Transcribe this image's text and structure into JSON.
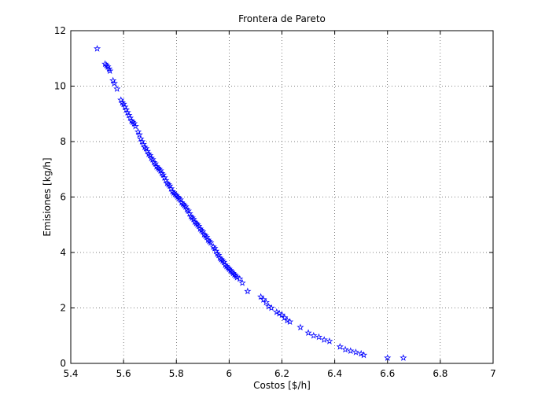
{
  "chart_data": {
    "type": "scatter",
    "title": "Frontera de Pareto",
    "xlabel": "Costos [$/h]",
    "ylabel": "Emisiones [kg/h]",
    "xlim": [
      5.4,
      7
    ],
    "ylim": [
      0,
      12
    ],
    "xticks": [
      "5.4",
      "5.6",
      "5.8",
      "6",
      "6.2",
      "6.4",
      "6.6",
      "6.8",
      "7"
    ],
    "yticks": [
      "0",
      "2",
      "4",
      "6",
      "8",
      "10",
      "12"
    ],
    "grid": true,
    "marker": "pentagram",
    "color": "#0000ff",
    "points": [
      [
        5.5,
        11.35
      ],
      [
        5.53,
        10.8
      ],
      [
        5.535,
        10.75
      ],
      [
        5.54,
        10.7
      ],
      [
        5.545,
        10.62
      ],
      [
        5.548,
        10.55
      ],
      [
        5.56,
        10.2
      ],
      [
        5.565,
        10.1
      ],
      [
        5.575,
        9.9
      ],
      [
        5.59,
        9.5
      ],
      [
        5.595,
        9.4
      ],
      [
        5.6,
        9.35
      ],
      [
        5.605,
        9.25
      ],
      [
        5.61,
        9.15
      ],
      [
        5.615,
        9.05
      ],
      [
        5.62,
        8.95
      ],
      [
        5.625,
        8.85
      ],
      [
        5.63,
        8.75
      ],
      [
        5.635,
        8.7
      ],
      [
        5.64,
        8.65
      ],
      [
        5.645,
        8.55
      ],
      [
        5.655,
        8.35
      ],
      [
        5.66,
        8.25
      ],
      [
        5.665,
        8.1
      ],
      [
        5.67,
        8.0
      ],
      [
        5.675,
        7.9
      ],
      [
        5.68,
        7.8
      ],
      [
        5.685,
        7.75
      ],
      [
        5.69,
        7.65
      ],
      [
        5.695,
        7.55
      ],
      [
        5.7,
        7.5
      ],
      [
        5.705,
        7.4
      ],
      [
        5.71,
        7.35
      ],
      [
        5.715,
        7.25
      ],
      [
        5.72,
        7.2
      ],
      [
        5.725,
        7.1
      ],
      [
        5.73,
        7.05
      ],
      [
        5.735,
        7.0
      ],
      [
        5.74,
        6.95
      ],
      [
        5.745,
        6.85
      ],
      [
        5.75,
        6.8
      ],
      [
        5.755,
        6.7
      ],
      [
        5.76,
        6.6
      ],
      [
        5.765,
        6.5
      ],
      [
        5.77,
        6.45
      ],
      [
        5.775,
        6.4
      ],
      [
        5.78,
        6.3
      ],
      [
        5.785,
        6.2
      ],
      [
        5.79,
        6.15
      ],
      [
        5.795,
        6.1
      ],
      [
        5.8,
        6.05
      ],
      [
        5.805,
        6.0
      ],
      [
        5.81,
        5.95
      ],
      [
        5.815,
        5.9
      ],
      [
        5.82,
        5.8
      ],
      [
        5.825,
        5.75
      ],
      [
        5.83,
        5.7
      ],
      [
        5.835,
        5.65
      ],
      [
        5.84,
        5.55
      ],
      [
        5.845,
        5.5
      ],
      [
        5.85,
        5.4
      ],
      [
        5.855,
        5.3
      ],
      [
        5.86,
        5.25
      ],
      [
        5.865,
        5.2
      ],
      [
        5.87,
        5.1
      ],
      [
        5.875,
        5.05
      ],
      [
        5.88,
        5.0
      ],
      [
        5.885,
        4.95
      ],
      [
        5.89,
        4.85
      ],
      [
        5.895,
        4.8
      ],
      [
        5.9,
        4.75
      ],
      [
        5.905,
        4.65
      ],
      [
        5.91,
        4.6
      ],
      [
        5.915,
        4.55
      ],
      [
        5.92,
        4.45
      ],
      [
        5.925,
        4.4
      ],
      [
        5.93,
        4.35
      ],
      [
        5.94,
        4.2
      ],
      [
        5.945,
        4.15
      ],
      [
        5.95,
        4.05
      ],
      [
        5.955,
        3.95
      ],
      [
        5.96,
        3.9
      ],
      [
        5.965,
        3.8
      ],
      [
        5.97,
        3.75
      ],
      [
        5.975,
        3.7
      ],
      [
        5.98,
        3.65
      ],
      [
        5.985,
        3.55
      ],
      [
        5.99,
        3.5
      ],
      [
        5.995,
        3.45
      ],
      [
        6.0,
        3.4
      ],
      [
        6.005,
        3.35
      ],
      [
        6.01,
        3.3
      ],
      [
        6.015,
        3.25
      ],
      [
        6.02,
        3.2
      ],
      [
        6.025,
        3.15
      ],
      [
        6.03,
        3.1
      ],
      [
        6.04,
        3.05
      ],
      [
        6.05,
        2.9
      ],
      [
        6.07,
        2.6
      ],
      [
        6.12,
        2.4
      ],
      [
        6.13,
        2.3
      ],
      [
        6.14,
        2.2
      ],
      [
        6.15,
        2.05
      ],
      [
        6.16,
        2.0
      ],
      [
        6.18,
        1.85
      ],
      [
        6.19,
        1.8
      ],
      [
        6.2,
        1.75
      ],
      [
        6.21,
        1.65
      ],
      [
        6.22,
        1.55
      ],
      [
        6.23,
        1.5
      ],
      [
        6.27,
        1.3
      ],
      [
        6.3,
        1.1
      ],
      [
        6.32,
        1.0
      ],
      [
        6.34,
        0.95
      ],
      [
        6.36,
        0.85
      ],
      [
        6.38,
        0.8
      ],
      [
        6.42,
        0.6
      ],
      [
        6.44,
        0.5
      ],
      [
        6.46,
        0.45
      ],
      [
        6.48,
        0.4
      ],
      [
        6.5,
        0.35
      ],
      [
        6.51,
        0.3
      ],
      [
        6.6,
        0.2
      ],
      [
        6.66,
        0.2
      ]
    ]
  }
}
